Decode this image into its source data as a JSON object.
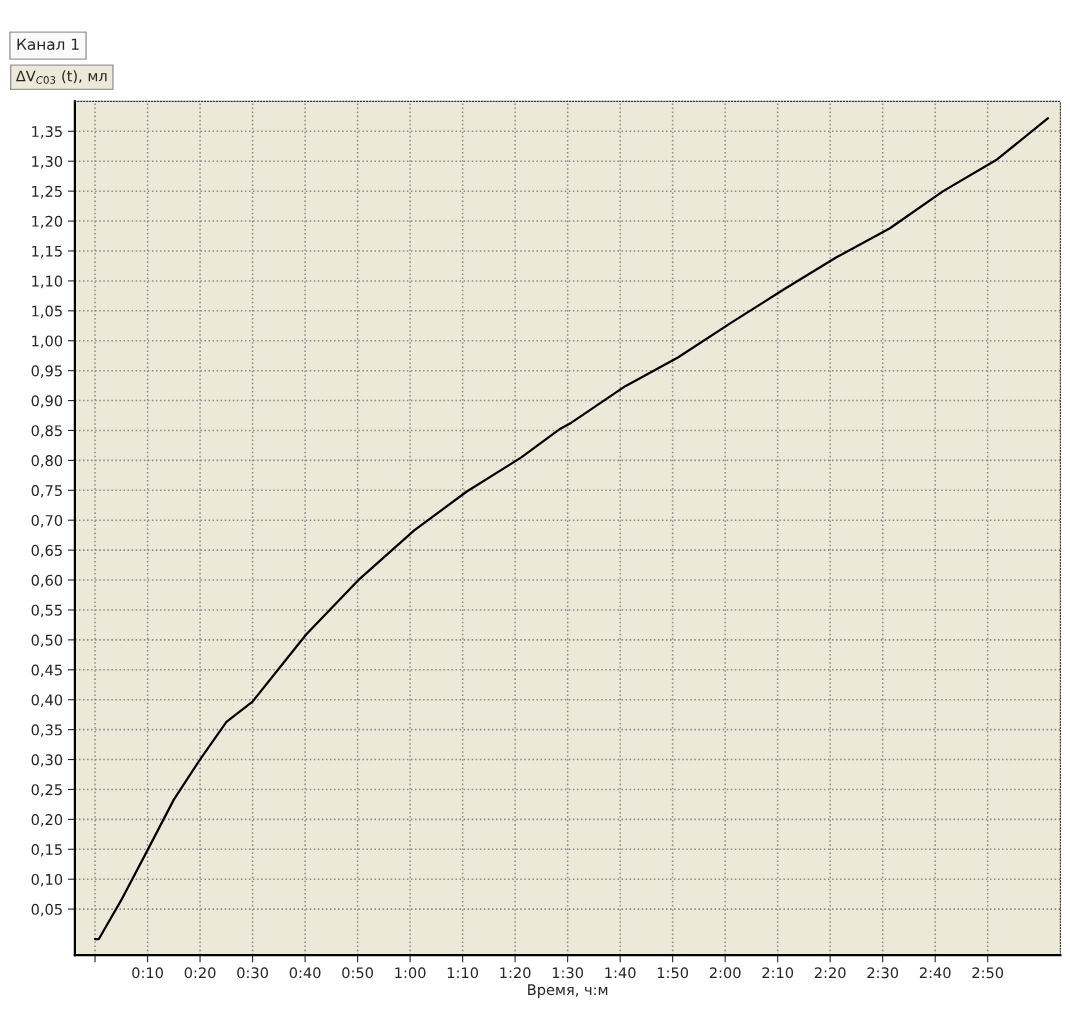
{
  "chart_data": {
    "type": "line",
    "title": "Канал 1",
    "ylabel": "ΔV$_{C03}$ (t), мл",
    "xlabel": "Время, ч:м",
    "x": [
      0,
      0.012,
      0.083,
      0.167,
      0.25,
      0.333,
      0.417,
      0.5,
      0.67,
      0.84,
      1.013,
      1.18,
      1.353,
      1.477,
      1.512,
      1.683,
      1.85,
      2.022,
      2.187,
      2.352,
      2.523,
      2.692,
      2.863,
      3.025
    ],
    "series": [
      {
        "color": "#000000",
        "values": [
          0,
          0,
          0.065,
          0.149,
          0.233,
          0.3,
          0.363,
          0.397,
          0.509,
          0.602,
          0.683,
          0.748,
          0.805,
          0.853,
          0.863,
          0.924,
          0.972,
          1.031,
          1.086,
          1.139,
          1.188,
          1.25,
          1.303,
          1.372
        ]
      }
    ],
    "xlim": [
      -0.064,
      3.064
    ],
    "ylim": [
      -0.027,
      1.4
    ],
    "xticks": [
      {
        "value": 0,
        "label": null
      },
      {
        "value": 0.1667,
        "label": "0:10"
      },
      {
        "value": 0.3333,
        "label": "0:20"
      },
      {
        "value": 0.5,
        "label": "0:30"
      },
      {
        "value": 0.6667,
        "label": "0:40"
      },
      {
        "value": 0.8333,
        "label": "0:50"
      },
      {
        "value": 1,
        "label": "1:00"
      },
      {
        "value": 1.1667,
        "label": "1:10"
      },
      {
        "value": 1.3333,
        "label": "1:20"
      },
      {
        "value": 1.5,
        "label": "1:30"
      },
      {
        "value": 1.6667,
        "label": "1:40"
      },
      {
        "value": 1.8333,
        "label": "1:50"
      },
      {
        "value": 2,
        "label": "2:00"
      },
      {
        "value": 2.1667,
        "label": "2:10"
      },
      {
        "value": 2.3333,
        "label": "2:20"
      },
      {
        "value": 2.5,
        "label": "2:30"
      },
      {
        "value": 2.6667,
        "label": "2:40"
      },
      {
        "value": 2.8333,
        "label": "2:50"
      }
    ],
    "yticks": [
      {
        "value": 0.05,
        "label": "0,05"
      },
      {
        "value": 0.1,
        "label": "0,10"
      },
      {
        "value": 0.15,
        "label": "0,15"
      },
      {
        "value": 0.2,
        "label": "0,20"
      },
      {
        "value": 0.25,
        "label": "0,25"
      },
      {
        "value": 0.3,
        "label": "0,30"
      },
      {
        "value": 0.35,
        "label": "0,35"
      },
      {
        "value": 0.4,
        "label": "0,40"
      },
      {
        "value": 0.45,
        "label": "0,45"
      },
      {
        "value": 0.5,
        "label": "0,50"
      },
      {
        "value": 0.55,
        "label": "0,55"
      },
      {
        "value": 0.6,
        "label": "0,60"
      },
      {
        "value": 0.65,
        "label": "0,65"
      },
      {
        "value": 0.7,
        "label": "0,70"
      },
      {
        "value": 0.75,
        "label": "0,75"
      },
      {
        "value": 0.8,
        "label": "0,80"
      },
      {
        "value": 0.85,
        "label": "0,85"
      },
      {
        "value": 0.9,
        "label": "0,90"
      },
      {
        "value": 0.95,
        "label": "0,95"
      },
      {
        "value": 1.0,
        "label": "1,00"
      },
      {
        "value": 1.05,
        "label": "1,05"
      },
      {
        "value": 1.1,
        "label": "1,10"
      },
      {
        "value": 1.15,
        "label": "1,15"
      },
      {
        "value": 1.2,
        "label": "1,20"
      },
      {
        "value": 1.25,
        "label": "1,25"
      },
      {
        "value": 1.3,
        "label": "1,30"
      },
      {
        "value": 1.35,
        "label": "1,35"
      }
    ],
    "grid": true,
    "legend": false,
    "marker": "none",
    "line_style": "solid"
  }
}
